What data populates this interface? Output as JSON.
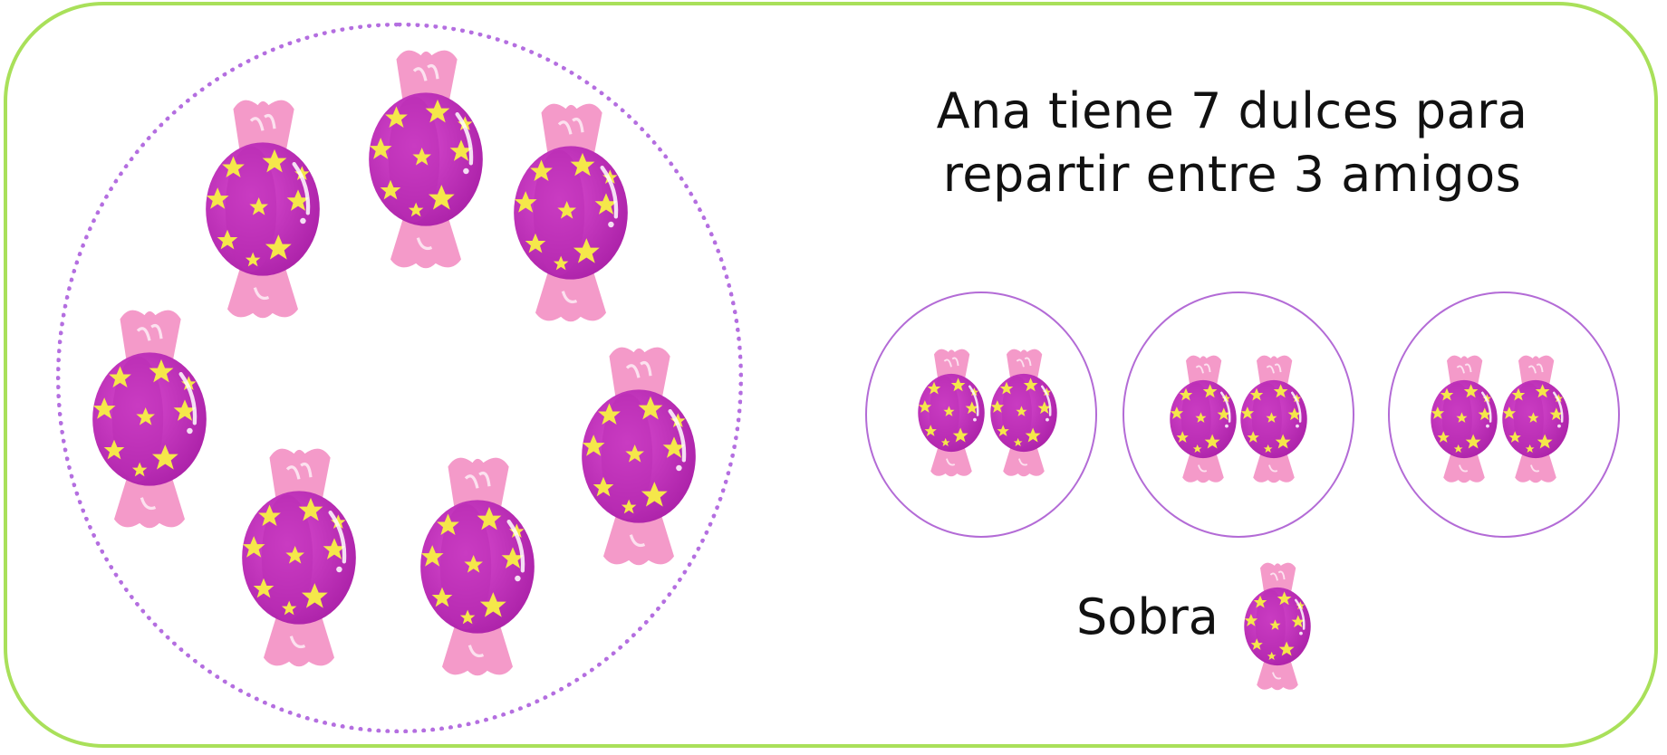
{
  "problem": {
    "line1": "Ana tiene 7 dulces para",
    "line2": "repartir entre 3 amigos"
  },
  "remainder_label": "Sobra",
  "colors": {
    "frame_border": "#a9e05a",
    "dotted_circle": "#b46ee0",
    "plate_border": "#b36bd6",
    "candy_body": "#c42fbd",
    "candy_wrapper": "#f49ac9",
    "candy_star": "#f5e74a"
  },
  "counts": {
    "total_candies": 7,
    "friends": 3,
    "candies_per_friend": 2,
    "leftover": 1
  },
  "icon": "candy-icon"
}
